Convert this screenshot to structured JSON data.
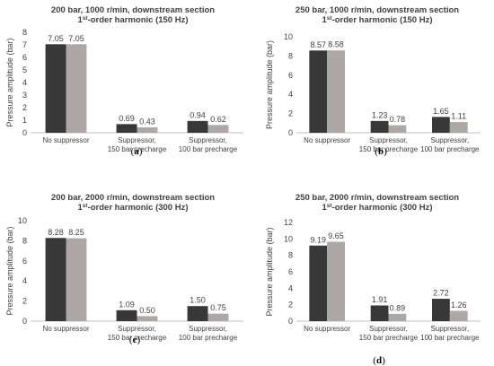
{
  "colors": {
    "series1": "#383838",
    "series2": "#ADA7A6",
    "axis": "#BFBFBF",
    "text": "#404040"
  },
  "chart_data": [
    {
      "type": "bar",
      "panel_label": "a",
      "title": [
        "200 bar, 1000 r/min, downstream section",
        "1st-order harmonic (150 Hz)"
      ],
      "ylabel": "Pressure amplitude (bar)",
      "ylim": [
        0,
        8
      ],
      "yticks": [
        0,
        1,
        2,
        3,
        4,
        5,
        6,
        7,
        8
      ],
      "categories": [
        [
          "No suppressor"
        ],
        [
          "Suppressor,",
          "150 bar precharge"
        ],
        [
          "Suppressor,",
          "100 bar precharge"
        ]
      ],
      "series": [
        {
          "values": [
            7.05,
            0.69,
            0.94
          ],
          "labels": [
            "7.05",
            "0.69",
            "0.94"
          ]
        },
        {
          "values": [
            7.05,
            0.43,
            0.62
          ],
          "labels": [
            "7.05",
            "0.43",
            "0.62"
          ]
        }
      ]
    },
    {
      "type": "bar",
      "panel_label": "b",
      "title": [
        "250 bar, 1000 r/min, downstream section",
        "1st-order harmonic (150 Hz)"
      ],
      "ylabel": "Pressure amplitude (bar)",
      "ylim": [
        0,
        10
      ],
      "yticks": [
        0,
        2,
        4,
        6,
        8,
        10
      ],
      "categories": [
        [
          "No suppressor"
        ],
        [
          "Suppressor,",
          "150 bar precharge"
        ],
        [
          "Suppressor,",
          "100 bar precharge"
        ]
      ],
      "series": [
        {
          "values": [
            8.57,
            1.23,
            1.65
          ],
          "labels": [
            "8.57",
            "1.23",
            "1.65"
          ]
        },
        {
          "values": [
            8.58,
            0.78,
            1.11
          ],
          "labels": [
            "8.58",
            "0.78",
            "1.11"
          ]
        }
      ]
    },
    {
      "type": "bar",
      "panel_label": "c",
      "title": [
        "200 bar, 2000 r/min, downstream section",
        "1st-order harmonic (300 Hz)"
      ],
      "ylabel": "Pressure amplitude (bar)",
      "ylim": [
        0,
        10
      ],
      "yticks": [
        0,
        2,
        4,
        6,
        8,
        10
      ],
      "categories": [
        [
          "No suppressor"
        ],
        [
          "Suppressor,",
          "150 bar precharge"
        ],
        [
          "Suppressor,",
          "100 bar precharge"
        ]
      ],
      "series": [
        {
          "values": [
            8.28,
            1.09,
            1.5
          ],
          "labels": [
            "8.28",
            "1.09",
            "1.50"
          ]
        },
        {
          "values": [
            8.25,
            0.5,
            0.75
          ],
          "labels": [
            "8.25",
            "0.50",
            "0.75"
          ]
        }
      ]
    },
    {
      "type": "bar",
      "panel_label": "d",
      "title": [
        "250 bar, 2000 r/min, downstream section",
        "1st-order harmonic (300 Hz)"
      ],
      "ylabel": "Pressure amplitude (bar)",
      "ylim": [
        0,
        12
      ],
      "yticks": [
        0,
        2,
        4,
        6,
        8,
        10,
        12
      ],
      "categories": [
        [
          "No suppressor"
        ],
        [
          "Suppressor,",
          "150 bar precharge"
        ],
        [
          "Suppressor,",
          "100 bar precharge"
        ]
      ],
      "series": [
        {
          "values": [
            9.19,
            1.91,
            2.72
          ],
          "labels": [
            "9.19",
            "1.91",
            "2.72"
          ]
        },
        {
          "values": [
            9.65,
            0.89,
            1.26
          ],
          "labels": [
            "9.65",
            "0.89",
            "1.26"
          ]
        }
      ]
    }
  ]
}
